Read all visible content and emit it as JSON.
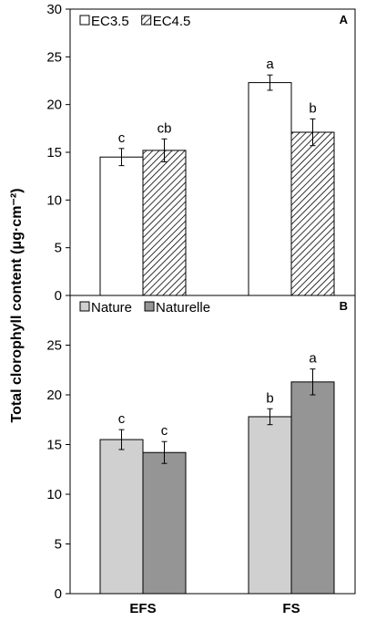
{
  "y_axis_label": "Total clorophyll content  (μg·cm⁻²)",
  "chart_data": [
    {
      "panel": "A",
      "type": "bar",
      "categories": [
        "EFS",
        "FS"
      ],
      "ylim": [
        0,
        30
      ],
      "yticks": [
        "0",
        "5",
        "10",
        "15",
        "20",
        "25",
        "30"
      ],
      "legend_position": "top-left",
      "series": [
        {
          "name": "EC3.5",
          "style": "white",
          "values": [
            14.5,
            22.3
          ],
          "errors": [
            0.9,
            0.8
          ],
          "letters": [
            "c",
            "a"
          ]
        },
        {
          "name": "EC4.5",
          "style": "hatched",
          "values": [
            15.2,
            17.1
          ],
          "errors": [
            1.2,
            1.4
          ],
          "letters": [
            "cb",
            "b"
          ]
        }
      ]
    },
    {
      "panel": "B",
      "type": "bar",
      "categories": [
        "EFS",
        "FS"
      ],
      "ylim": [
        0,
        30
      ],
      "yticks": [
        "0",
        "5",
        "10",
        "15",
        "20",
        "25"
      ],
      "legend_position": "top-left",
      "series": [
        {
          "name": "Nature",
          "color": "#d0d0d0",
          "values": [
            15.5,
            17.8
          ],
          "errors": [
            1.0,
            0.8
          ],
          "letters": [
            "c",
            "b"
          ]
        },
        {
          "name": "Naturelle",
          "color": "#959595",
          "values": [
            14.2,
            21.3
          ],
          "errors": [
            1.1,
            1.3
          ],
          "letters": [
            "c",
            "a"
          ]
        }
      ]
    }
  ]
}
